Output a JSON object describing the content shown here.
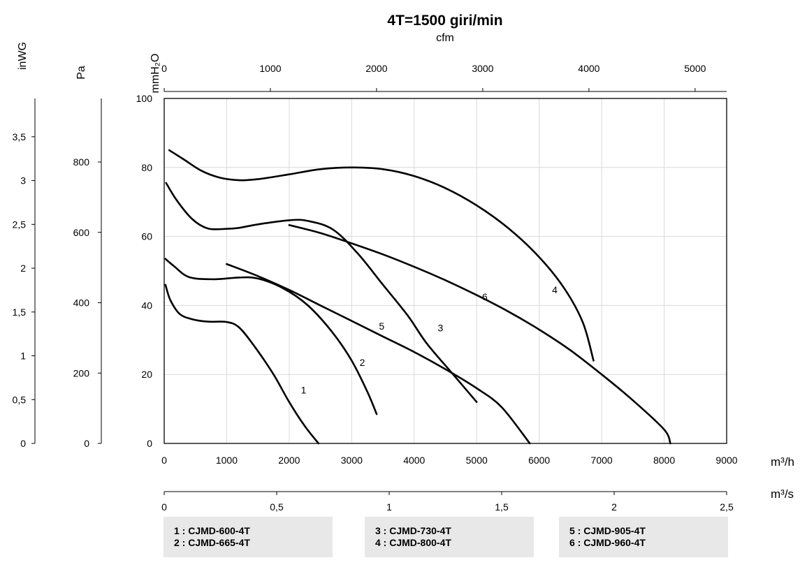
{
  "chart_data": {
    "type": "line",
    "title": "4T=1500 giri/min",
    "xlabel": "m³/h",
    "ylabel": "mmH₂O",
    "xlim": [
      0,
      9000
    ],
    "ylim": [
      0,
      100
    ],
    "grid": true,
    "x_ticks": [
      0,
      1000,
      2000,
      3000,
      4000,
      5000,
      6000,
      7000,
      8000,
      9000
    ],
    "y_ticks": [
      0,
      20,
      40,
      60,
      80,
      100
    ],
    "secondary_axes": {
      "cfm": {
        "label": "cfm",
        "ticks": [
          "0",
          "1000",
          "2000",
          "3000",
          "4000",
          "5000"
        ],
        "values": [
          0,
          1000,
          2000,
          3000,
          4000,
          5000
        ]
      },
      "m3s": {
        "label": "m³/s",
        "ticks": [
          "0",
          "0,5",
          "1",
          "1,5",
          "2",
          "2,5"
        ],
        "values": [
          0,
          0.5,
          1,
          1.5,
          2,
          2.5
        ]
      },
      "pa": {
        "label": "Pa",
        "ticks": [
          "0",
          "200",
          "400",
          "600",
          "800"
        ],
        "values": [
          0,
          200,
          400,
          600,
          800
        ]
      },
      "inwg": {
        "label": "inWG",
        "ticks": [
          "0",
          "0,5",
          "1",
          "1,5",
          "2",
          "2,5",
          "3",
          "3,5"
        ],
        "values": [
          0,
          0.5,
          1,
          1.5,
          2,
          2.5,
          3,
          3.5
        ]
      }
    },
    "series": [
      {
        "name": "1",
        "label_at": [
          2230,
          15.5
        ],
        "points": [
          [
            20,
            46
          ],
          [
            100,
            41.5
          ],
          [
            250,
            37.5
          ],
          [
            450,
            36
          ],
          [
            700,
            35.3
          ],
          [
            1000,
            35.2
          ],
          [
            1200,
            33.6
          ],
          [
            1450,
            28
          ],
          [
            1750,
            20
          ],
          [
            2000,
            12
          ],
          [
            2250,
            5
          ],
          [
            2470,
            0
          ]
        ]
      },
      {
        "name": "2",
        "label_at": [
          3170,
          23.5
        ],
        "points": [
          [
            20,
            53.5
          ],
          [
            150,
            51.5
          ],
          [
            400,
            48.2
          ],
          [
            800,
            47.6
          ],
          [
            1200,
            48.1
          ],
          [
            1500,
            47.8
          ],
          [
            1900,
            45
          ],
          [
            2300,
            40
          ],
          [
            2700,
            32
          ],
          [
            3000,
            24
          ],
          [
            3250,
            15
          ],
          [
            3400,
            8.5
          ]
        ]
      },
      {
        "name": "3",
        "label_at": [
          4420,
          33.5
        ],
        "points": [
          [
            30,
            75.5
          ],
          [
            200,
            70.5
          ],
          [
            450,
            65
          ],
          [
            700,
            62.3
          ],
          [
            1000,
            62.2
          ],
          [
            1200,
            62.5
          ],
          [
            1500,
            63.5
          ],
          [
            2000,
            64.7
          ],
          [
            2300,
            64.5
          ],
          [
            2700,
            62
          ],
          [
            3100,
            55
          ],
          [
            3500,
            46
          ],
          [
            3900,
            37
          ],
          [
            4200,
            29
          ],
          [
            4600,
            20.5
          ],
          [
            5000,
            12
          ]
        ]
      },
      {
        "name": "4",
        "label_at": [
          6250,
          44.5
        ],
        "points": [
          [
            80,
            85
          ],
          [
            300,
            82.5
          ],
          [
            600,
            79
          ],
          [
            900,
            77
          ],
          [
            1200,
            76.3
          ],
          [
            1500,
            76.6
          ],
          [
            2000,
            78
          ],
          [
            2500,
            79.5
          ],
          [
            3000,
            80
          ],
          [
            3500,
            79.5
          ],
          [
            4000,
            77.5
          ],
          [
            4500,
            74
          ],
          [
            5000,
            69
          ],
          [
            5500,
            62.5
          ],
          [
            6000,
            54
          ],
          [
            6400,
            45
          ],
          [
            6700,
            35
          ],
          [
            6870,
            24
          ]
        ]
      },
      {
        "name": "5",
        "label_at": [
          3480,
          34
        ],
        "points": [
          [
            1000,
            52
          ],
          [
            1500,
            48.5
          ],
          [
            2000,
            44.5
          ],
          [
            2500,
            40
          ],
          [
            3000,
            35.5
          ],
          [
            3500,
            31
          ],
          [
            4000,
            26.5
          ],
          [
            4500,
            21.5
          ],
          [
            5000,
            16
          ],
          [
            5400,
            10.5
          ],
          [
            5850,
            0
          ]
        ]
      },
      {
        "name": "6",
        "label_at": [
          5130,
          42.5
        ],
        "points": [
          [
            2000,
            63.3
          ],
          [
            2500,
            61
          ],
          [
            3000,
            58
          ],
          [
            3500,
            54.8
          ],
          [
            4000,
            51.2
          ],
          [
            4500,
            47.3
          ],
          [
            5000,
            43
          ],
          [
            5500,
            38.3
          ],
          [
            6000,
            33
          ],
          [
            6500,
            27
          ],
          [
            7000,
            20
          ],
          [
            7500,
            12.5
          ],
          [
            8000,
            4
          ],
          [
            8100,
            0
          ]
        ]
      }
    ]
  },
  "legend": [
    [
      "1 : CJMD-600-4T",
      "2 : CJMD-665-4T"
    ],
    [
      "3 : CJMD-730-4T",
      "4 : CJMD-800-4T"
    ],
    [
      "5 : CJMD-905-4T",
      "6 : CJMD-960-4T"
    ]
  ]
}
